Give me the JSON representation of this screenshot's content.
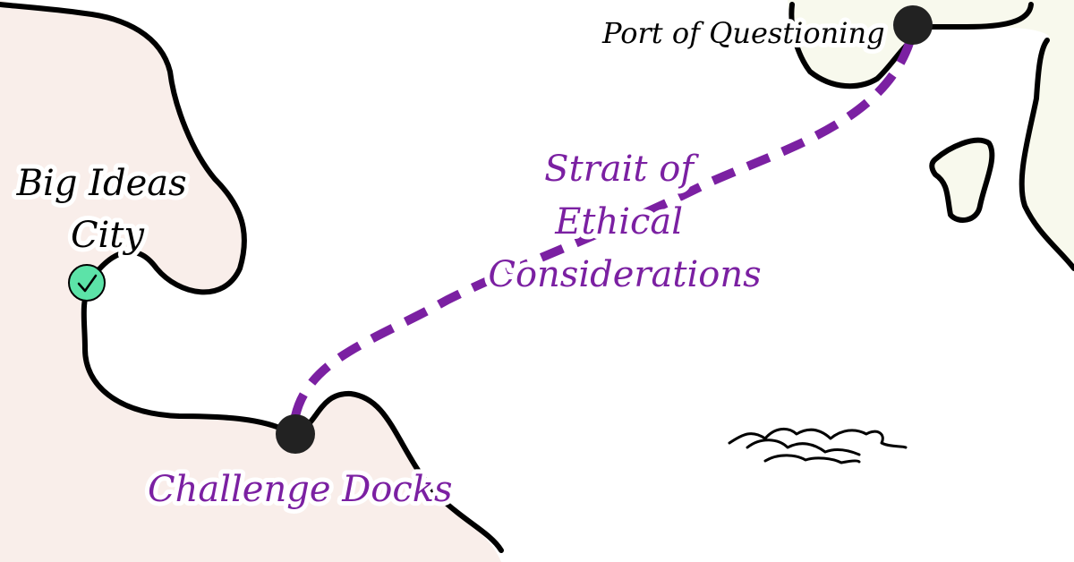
{
  "colors": {
    "land_west": "#f9eeea",
    "land_east": "#f8f9ed",
    "sea": "#ffffff",
    "coastline": "#000000",
    "route": "#7b20a2",
    "port_marker": "#222222",
    "visited_badge": "#5ce3a8"
  },
  "places": {
    "big_ideas_city": {
      "line1": "Big Ideas",
      "line2": "City",
      "status": "visited",
      "icon": "check-icon"
    },
    "challenge_docks": {
      "label": "Challenge Docks"
    },
    "port_of_questioning": {
      "label": "Port of Questioning"
    }
  },
  "route": {
    "label_line1": "Strait of",
    "label_line2": "Ethical",
    "label_line3": "Considerations",
    "style": "dashed"
  },
  "decorations": {
    "waves": "wave-icon"
  }
}
